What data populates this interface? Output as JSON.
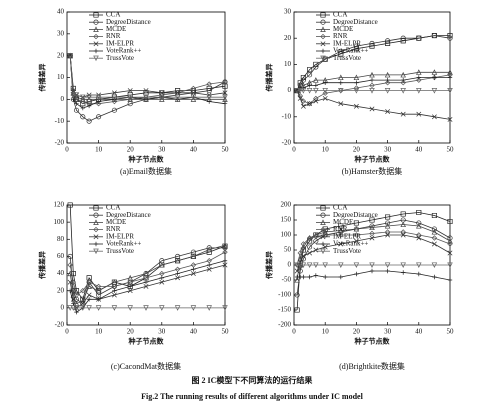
{
  "figure_caption": {
    "cn": "图 2   IC模型下不同算法的运行结果",
    "en": "Fig.2    The running results of different algorithms under IC model"
  },
  "chart_data": [
    {
      "type": "line",
      "caption": "(a)Email数据集",
      "x_label": "种子节点数",
      "y_label": "传播差异",
      "x": [
        1,
        2,
        3,
        5,
        7,
        10,
        15,
        20,
        25,
        30,
        35,
        40,
        45,
        50
      ],
      "xlim": [
        0,
        50
      ],
      "xticks": [
        0,
        10,
        20,
        30,
        40,
        50
      ],
      "ylim": [
        -20,
        40
      ],
      "yticks": [
        -20,
        -10,
        0,
        10,
        20,
        30,
        40
      ],
      "series": [
        {
          "name": "CCA",
          "color": "#222222",
          "marker": "square",
          "values": [
            20,
            5,
            0,
            -2,
            -1,
            0,
            1,
            2,
            3,
            3,
            4,
            4,
            5,
            6
          ]
        },
        {
          "name": "DegreeDistance",
          "color": "#333333",
          "marker": "circle",
          "values": [
            20,
            0,
            -5,
            -8,
            -10,
            -8,
            -5,
            -2,
            0,
            1,
            2,
            3,
            4,
            8
          ]
        },
        {
          "name": "MCDE",
          "color": "#444444",
          "marker": "triangle",
          "values": [
            20,
            3,
            1,
            0,
            0,
            0,
            0,
            0,
            0,
            0,
            0,
            0,
            0,
            0
          ]
        },
        {
          "name": "RNR",
          "color": "#555555",
          "marker": "diamond",
          "values": [
            20,
            2,
            0,
            -1,
            -2,
            -2,
            -1,
            0,
            1,
            2,
            3,
            5,
            7,
            8
          ]
        },
        {
          "name": "IM-ELPR",
          "color": "#333333",
          "marker": "cross",
          "values": [
            20,
            4,
            2,
            1,
            2,
            2,
            3,
            4,
            4,
            3,
            3,
            3,
            2,
            3
          ]
        },
        {
          "name": "VoteRank++",
          "color": "#222222",
          "marker": "plus",
          "values": [
            20,
            0,
            -2,
            -4,
            -3,
            -1,
            0,
            1,
            0,
            1,
            0,
            1,
            -1,
            -2
          ]
        },
        {
          "name": "TrussVote",
          "color": "#666666",
          "marker": "tridown",
          "values": [
            20,
            2,
            2,
            1,
            1,
            1,
            1,
            1,
            1,
            1,
            1,
            1,
            1,
            1
          ]
        }
      ]
    },
    {
      "type": "line",
      "caption": "(b)Hamster数据集",
      "x_label": "种子节点数",
      "y_label": "传播差异",
      "x": [
        1,
        2,
        3,
        5,
        7,
        10,
        15,
        20,
        25,
        30,
        35,
        40,
        45,
        50
      ],
      "xlim": [
        0,
        50
      ],
      "xticks": [
        0,
        10,
        20,
        30,
        40,
        50
      ],
      "ylim": [
        -20,
        30
      ],
      "yticks": [
        -20,
        -10,
        0,
        10,
        20,
        30
      ],
      "series": [
        {
          "name": "CCA",
          "color": "#222222",
          "marker": "square",
          "values": [
            0,
            3,
            5,
            8,
            10,
            12,
            14,
            16,
            17,
            18,
            19,
            20,
            21,
            21
          ]
        },
        {
          "name": "DegreeDistance",
          "color": "#333333",
          "marker": "circle",
          "values": [
            0,
            2,
            4,
            6,
            9,
            12,
            15,
            17,
            18,
            19,
            20,
            20,
            21,
            20
          ]
        },
        {
          "name": "MCDE",
          "color": "#444444",
          "marker": "triangle",
          "values": [
            0,
            1,
            2,
            3,
            4,
            4,
            5,
            5,
            6,
            6,
            6,
            7,
            7,
            7
          ]
        },
        {
          "name": "RNR",
          "color": "#555555",
          "marker": "diamond",
          "values": [
            0,
            -2,
            -4,
            -5,
            -3,
            -1,
            0,
            1,
            2,
            3,
            3,
            4,
            5,
            6
          ]
        },
        {
          "name": "IM-ELPR",
          "color": "#333333",
          "marker": "cross",
          "values": [
            0,
            -3,
            -6,
            -5,
            -4,
            -3,
            -5,
            -6,
            -7,
            -8,
            -9,
            -9,
            -10,
            -11
          ]
        },
        {
          "name": "VoteRank++",
          "color": "#222222",
          "marker": "plus",
          "values": [
            0,
            1,
            1,
            2,
            2,
            3,
            3,
            3,
            4,
            4,
            4,
            5,
            5,
            5
          ]
        },
        {
          "name": "TrussVote",
          "color": "#666666",
          "marker": "tridown",
          "values": [
            0,
            0,
            0,
            0,
            0,
            0,
            0,
            0,
            0,
            0,
            0,
            0,
            0,
            0
          ]
        }
      ]
    },
    {
      "type": "line",
      "caption": "(c)CacondMat数据集",
      "x_label": "种子节点数",
      "y_label": "传播差异",
      "x": [
        1,
        2,
        3,
        5,
        7,
        10,
        15,
        20,
        25,
        30,
        35,
        40,
        45,
        50
      ],
      "xlim": [
        0,
        50
      ],
      "xticks": [
        0,
        10,
        20,
        30,
        40,
        50
      ],
      "ylim": [
        -20,
        120
      ],
      "yticks": [
        -20,
        0,
        20,
        40,
        60,
        80,
        100,
        120
      ],
      "series": [
        {
          "name": "CCA",
          "color": "#222222",
          "marker": "square",
          "values": [
            120,
            40,
            20,
            10,
            35,
            20,
            30,
            25,
            35,
            50,
            55,
            60,
            65,
            72
          ]
        },
        {
          "name": "DegreeDistance",
          "color": "#333333",
          "marker": "circle",
          "values": [
            60,
            20,
            10,
            5,
            30,
            15,
            25,
            30,
            40,
            55,
            60,
            65,
            70,
            70
          ]
        },
        {
          "name": "MCDE",
          "color": "#444444",
          "marker": "triangle",
          "values": [
            40,
            15,
            5,
            8,
            25,
            20,
            30,
            35,
            40,
            50,
            55,
            60,
            68,
            73
          ]
        },
        {
          "name": "RNR",
          "color": "#555555",
          "marker": "diamond",
          "values": [
            50,
            30,
            15,
            20,
            30,
            25,
            25,
            30,
            35,
            40,
            45,
            50,
            55,
            65
          ]
        },
        {
          "name": "IM-ELPR",
          "color": "#333333",
          "marker": "cross",
          "values": [
            30,
            10,
            0,
            5,
            15,
            10,
            15,
            20,
            25,
            30,
            35,
            40,
            45,
            50
          ]
        },
        {
          "name": "VoteRank++",
          "color": "#222222",
          "marker": "plus",
          "values": [
            20,
            5,
            -5,
            0,
            10,
            10,
            20,
            25,
            30,
            35,
            40,
            45,
            50,
            55
          ]
        },
        {
          "name": "TrussVote",
          "color": "#666666",
          "marker": "tridown",
          "values": [
            0,
            0,
            0,
            0,
            0,
            0,
            0,
            0,
            0,
            0,
            0,
            0,
            0,
            0
          ]
        }
      ]
    },
    {
      "type": "line",
      "caption": "(d)Brightkite数据集",
      "x_label": "种子节点数",
      "y_label": "传播差异",
      "x": [
        1,
        2,
        3,
        5,
        7,
        10,
        15,
        20,
        25,
        30,
        35,
        40,
        45,
        50
      ],
      "xlim": [
        0,
        50
      ],
      "xticks": [
        0,
        10,
        20,
        30,
        40,
        50
      ],
      "ylim": [
        -200,
        200
      ],
      "yticks": [
        -200,
        -150,
        -100,
        -50,
        0,
        50,
        100,
        150,
        200
      ],
      "series": [
        {
          "name": "CCA",
          "color": "#222222",
          "marker": "square",
          "values": [
            -150,
            0,
            50,
            80,
            100,
            120,
            130,
            140,
            150,
            160,
            170,
            175,
            165,
            145
          ]
        },
        {
          "name": "DegreeDistance",
          "color": "#333333",
          "marker": "circle",
          "values": [
            -100,
            -20,
            20,
            60,
            80,
            100,
            110,
            120,
            130,
            140,
            150,
            140,
            120,
            90
          ]
        },
        {
          "name": "MCDE",
          "color": "#444444",
          "marker": "triangle",
          "values": [
            -50,
            20,
            60,
            90,
            100,
            110,
            115,
            120,
            125,
            130,
            135,
            130,
            110,
            80
          ]
        },
        {
          "name": "RNR",
          "color": "#555555",
          "marker": "diamond",
          "values": [
            0,
            40,
            70,
            90,
            95,
            100,
            100,
            100,
            105,
            110,
            110,
            100,
            90,
            70
          ]
        },
        {
          "name": "IM-ELPR",
          "color": "#333333",
          "marker": "cross",
          "values": [
            -20,
            10,
            30,
            40,
            50,
            60,
            70,
            80,
            90,
            100,
            100,
            90,
            70,
            40
          ]
        },
        {
          "name": "VoteRank++",
          "color": "#222222",
          "marker": "plus",
          "values": [
            -40,
            -40,
            -40,
            -40,
            -35,
            -40,
            -40,
            -30,
            -20,
            -20,
            -25,
            -30,
            -40,
            -50
          ]
        },
        {
          "name": "TrussVote",
          "color": "#666666",
          "marker": "tridown",
          "values": [
            0,
            0,
            0,
            0,
            0,
            0,
            0,
            0,
            0,
            0,
            0,
            0,
            0,
            0
          ]
        }
      ]
    }
  ]
}
